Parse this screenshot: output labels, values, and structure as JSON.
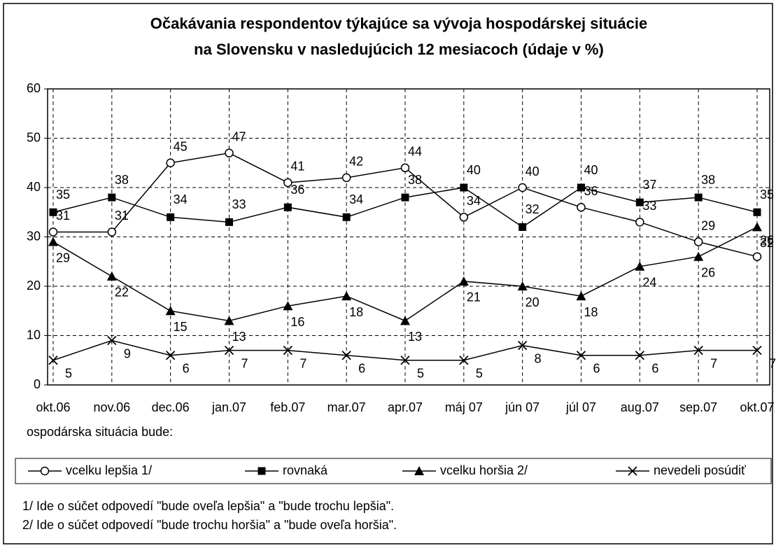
{
  "chart_data": {
    "type": "line",
    "title": [
      "Očakávania respondentov týkajúce sa vývoja hospodárskej situácie",
      "na Slovensku v nasledujúcich 12 mesiacoch  (údaje v %)"
    ],
    "x_label": "ospodárska situácia bude:",
    "categories": [
      "okt.06",
      "nov.06",
      "dec.06",
      "jan.07",
      "feb.07",
      "mar.07",
      "apr.07",
      "máj 07",
      "jún 07",
      "júl 07",
      "aug.07",
      "sep.07",
      "okt.07"
    ],
    "ylim": [
      0,
      60
    ],
    "yticks": [
      0,
      10,
      20,
      30,
      40,
      50,
      60
    ],
    "grid": true,
    "series": [
      {
        "name": "vcelku lepšia 1/",
        "color": "#000000",
        "marker": "circle",
        "values": [
          31,
          31,
          45,
          47,
          41,
          42,
          44,
          34,
          40,
          36,
          33,
          29,
          26
        ]
      },
      {
        "name": "rovnaká",
        "color": "#000000",
        "marker": "square",
        "values": [
          35,
          38,
          34,
          33,
          36,
          34,
          38,
          40,
          32,
          40,
          37,
          38,
          35
        ]
      },
      {
        "name": "vcelku horšia 2/",
        "color": "#000000",
        "marker": "triangle",
        "values": [
          29,
          22,
          15,
          13,
          16,
          18,
          13,
          21,
          20,
          18,
          24,
          26,
          32
        ]
      },
      {
        "name": "nevedeli posúdiť",
        "color": "#000000",
        "marker": "cross",
        "values": [
          5,
          9,
          6,
          7,
          7,
          6,
          5,
          5,
          8,
          6,
          6,
          7,
          7
        ]
      }
    ],
    "notes": [
      "1/ Ide o súčet odpovedí \"bude oveľa lepšia\" a \"bude trochu lepšia\".",
      "2/ Ide o súčet odpovedí \"bude trochu horšia\" a \"bude oveľa horšia\"."
    ]
  }
}
